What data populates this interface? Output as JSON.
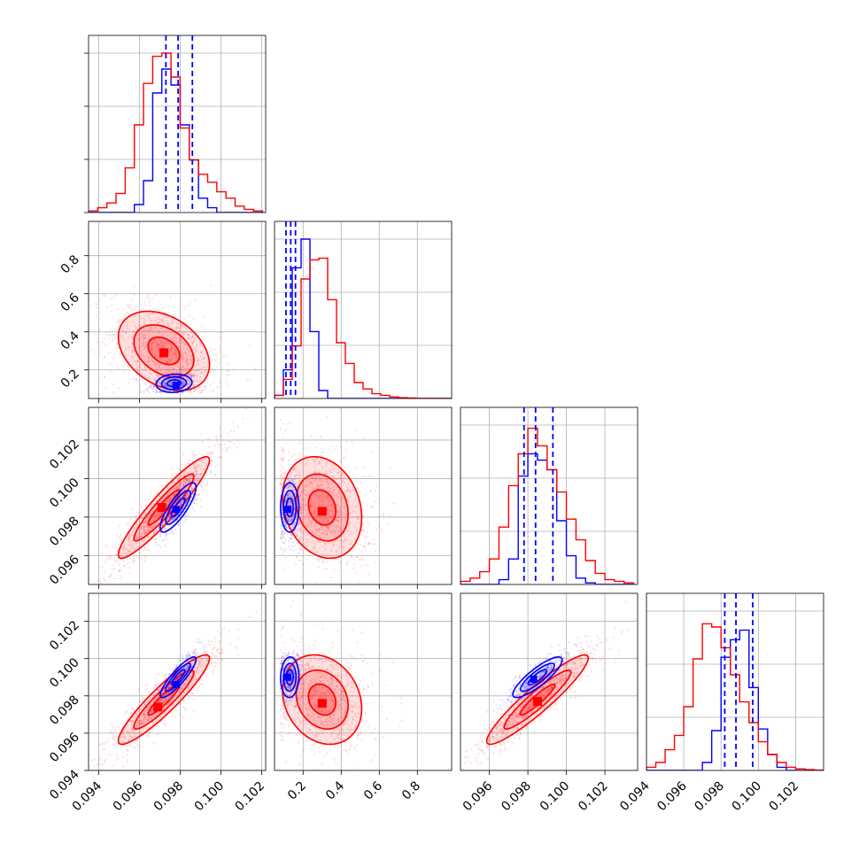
{
  "chart_data": {
    "type": "corner",
    "colors": {
      "blue": "#0000ff",
      "red": "#ff0000",
      "grid": "#b0b0b0",
      "axis": "#000000"
    },
    "series": [
      {
        "name": "",
        "color": "#0000ff"
      },
      {
        "name": "",
        "color": "#ff0000"
      }
    ],
    "grid": true,
    "tick_labels": {
      "row1_y": [
        "0.2",
        "0.4",
        "0.6",
        "0.8"
      ],
      "row2_y": [
        "0.096",
        "0.098",
        "0.100",
        "0.102"
      ],
      "row3_y": [
        "0.094",
        "0.096",
        "0.098",
        "0.100",
        "0.102"
      ],
      "col0_x": [
        "0.094",
        "0.096",
        "0.098",
        "0.100",
        "0.102"
      ],
      "col1_x": [
        "0.2",
        "0.4",
        "0.6",
        "0.8"
      ],
      "col2_x": [
        "0.096",
        "0.098",
        "0.100",
        "0.102"
      ],
      "col3_x": [
        "0.094",
        "0.096",
        "0.098",
        "0.100",
        "0.102"
      ]
    },
    "ranges": [
      [
        0.0935,
        0.1022
      ],
      [
        0.05,
        0.98
      ],
      [
        0.0945,
        0.1037
      ],
      [
        0.094,
        0.1035
      ]
    ],
    "quantile_lines": [
      [
        0.0973,
        0.0979,
        0.0986
      ],
      [
        0.11,
        0.135,
        0.16
      ],
      [
        0.0978,
        0.0984,
        0.0993
      ],
      [
        0.0982,
        0.0988,
        0.0997
      ]
    ],
    "histograms": [
      {
        "bin_edges": [
          0.0935,
          0.09395,
          0.0944,
          0.09485,
          0.0953,
          0.09575,
          0.0962,
          0.09665,
          0.0971,
          0.09755,
          0.098,
          0.09845,
          0.0989,
          0.09935,
          0.0998,
          0.10025,
          0.1007,
          0.10115,
          0.1016,
          0.10205
        ],
        "red": [
          0.01,
          0.03,
          0.06,
          0.12,
          0.28,
          0.55,
          0.81,
          0.98,
          1.0,
          0.85,
          0.53,
          0.33,
          0.24,
          0.19,
          0.13,
          0.09,
          0.04,
          0.02,
          0.01
        ],
        "blue": [
          0,
          0,
          0,
          0,
          0,
          0.05,
          0.2,
          0.75,
          0.9,
          0.8,
          0.55,
          0.33,
          0.09,
          0.03,
          0,
          0,
          0,
          0,
          0
        ]
      },
      {
        "bin_edges": [
          0.05,
          0.0965,
          0.143,
          0.1895,
          0.236,
          0.2825,
          0.329,
          0.3755,
          0.422,
          0.4685,
          0.515,
          0.5615,
          0.608,
          0.6545,
          0.701,
          0.7475,
          0.794,
          0.8405,
          0.887,
          0.9335,
          0.98
        ],
        "red": [
          0.02,
          0.12,
          0.33,
          0.75,
          0.87,
          0.88,
          0.62,
          0.35,
          0.22,
          0.1,
          0.06,
          0.03,
          0.02,
          0.01,
          0.005,
          0.003,
          0,
          0,
          0,
          0
        ],
        "blue": [
          0.02,
          0.18,
          0.82,
          1.0,
          0.42,
          0.05,
          0,
          0,
          0,
          0,
          0,
          0,
          0,
          0,
          0,
          0,
          0,
          0,
          0,
          0
        ]
      },
      {
        "bin_edges": [
          0.0945,
          0.095,
          0.0955,
          0.096,
          0.0965,
          0.097,
          0.0975,
          0.098,
          0.0985,
          0.099,
          0.0995,
          0.1,
          0.1005,
          0.101,
          0.1015,
          0.102,
          0.1025,
          0.103,
          0.1035
        ],
        "red": [
          0.02,
          0.04,
          0.08,
          0.16,
          0.36,
          0.62,
          0.82,
          0.98,
          0.87,
          0.72,
          0.58,
          0.41,
          0.28,
          0.15,
          0.07,
          0.03,
          0.02,
          0.01
        ],
        "blue": [
          0,
          0,
          0,
          0,
          0.03,
          0.16,
          0.68,
          0.82,
          0.78,
          0.72,
          0.4,
          0.18,
          0.04,
          0.01,
          0,
          0,
          0,
          0
        ]
      },
      {
        "bin_edges": [
          0.094,
          0.0945,
          0.095,
          0.0955,
          0.096,
          0.0965,
          0.097,
          0.0975,
          0.098,
          0.0985,
          0.099,
          0.0995,
          0.1,
          0.1005,
          0.101,
          0.1015,
          0.102,
          0.1025,
          0.103,
          0.1035
        ],
        "red": [
          0.02,
          0.05,
          0.13,
          0.22,
          0.4,
          0.7,
          0.92,
          0.9,
          0.77,
          0.6,
          0.43,
          0.3,
          0.18,
          0.1,
          0.05,
          0.02,
          0.01,
          0.005,
          0.002
        ],
        "blue": [
          0,
          0,
          0,
          0,
          0,
          0,
          0.05,
          0.25,
          0.71,
          0.82,
          0.88,
          0.52,
          0.26,
          0.1,
          0.02,
          0,
          0,
          0,
          0
        ]
      }
    ],
    "pairs": [
      {
        "row": 1,
        "col": 0,
        "red": {
          "mean": [
            0.0972,
            0.3
          ],
          "sx": 0.0014,
          "sy": 0.13,
          "rho": -0.35,
          "peak": [
            0.0972,
            0.29
          ]
        },
        "blue": {
          "mean": [
            0.0977,
            0.13
          ],
          "sx": 0.00055,
          "sy": 0.03,
          "rho": 0.1,
          "peak": [
            0.0978,
            0.12
          ]
        }
      },
      {
        "row": 2,
        "col": 0,
        "red": {
          "mean": [
            0.0972,
            0.0985
          ],
          "sx": 0.0014,
          "sy": 0.00165,
          "rho": 0.93,
          "peak": [
            0.0971,
            0.0985
          ]
        },
        "blue": {
          "mean": [
            0.0979,
            0.0985
          ],
          "sx": 0.00055,
          "sy": 0.0008,
          "rho": 0.82,
          "peak": [
            0.0978,
            0.0984
          ]
        }
      },
      {
        "row": 3,
        "col": 0,
        "red": {
          "mean": [
            0.0972,
            0.0978
          ],
          "sx": 0.0014,
          "sy": 0.0015,
          "rho": 0.92,
          "peak": [
            0.0969,
            0.0974
          ]
        },
        "blue": {
          "mean": [
            0.0979,
            0.099
          ],
          "sx": 0.00055,
          "sy": 0.00068,
          "rho": 0.88,
          "peak": [
            0.0978,
            0.0986
          ]
        }
      },
      {
        "row": 2,
        "col": 1,
        "red": {
          "mean": [
            0.3,
            0.0985
          ],
          "sx": 0.13,
          "sy": 0.00165,
          "rho": -0.2,
          "peak": [
            0.3,
            0.0983
          ]
        },
        "blue": {
          "mean": [
            0.13,
            0.0985
          ],
          "sx": 0.03,
          "sy": 0.0008,
          "rho": 0.0,
          "peak": [
            0.12,
            0.0984
          ]
        }
      },
      {
        "row": 3,
        "col": 1,
        "red": {
          "mean": [
            0.3,
            0.0978
          ],
          "sx": 0.13,
          "sy": 0.0015,
          "rho": -0.2,
          "peak": [
            0.3,
            0.0976
          ]
        },
        "blue": {
          "mean": [
            0.13,
            0.099
          ],
          "sx": 0.03,
          "sy": 0.00068,
          "rho": 0.05,
          "peak": [
            0.12,
            0.099
          ]
        }
      },
      {
        "row": 3,
        "col": 2,
        "red": {
          "mean": [
            0.0985,
            0.0978
          ],
          "sx": 0.00165,
          "sy": 0.0015,
          "rho": 0.93,
          "peak": [
            0.0985,
            0.0977
          ]
        },
        "blue": {
          "mean": [
            0.0985,
            0.099
          ],
          "sx": 0.0008,
          "sy": 0.00068,
          "rho": 0.85,
          "peak": [
            0.0983,
            0.0989
          ]
        }
      }
    ]
  }
}
